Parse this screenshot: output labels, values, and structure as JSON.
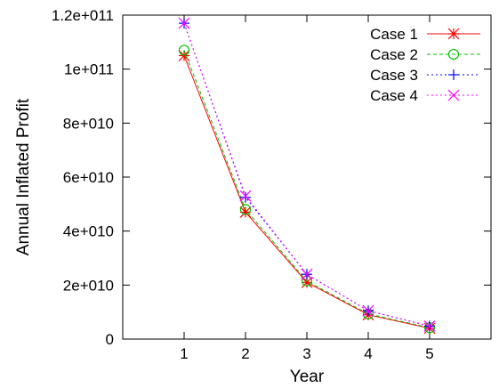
{
  "chart_data": {
    "type": "line",
    "title": "",
    "xlabel": "Year",
    "ylabel": "Annual Inflated Profit",
    "x": [
      1,
      2,
      3,
      4,
      5
    ],
    "xlim": [
      0,
      6
    ],
    "ylim": [
      0,
      120000000000
    ],
    "x_ticks": [
      "1",
      "2",
      "3",
      "4",
      "5"
    ],
    "y_ticks": [
      {
        "value": 0,
        "label": "0"
      },
      {
        "value": 20000000000,
        "label": "2e+010"
      },
      {
        "value": 40000000000,
        "label": "4e+010"
      },
      {
        "value": 60000000000,
        "label": "6e+010"
      },
      {
        "value": 80000000000,
        "label": "8e+010"
      },
      {
        "value": 100000000000,
        "label": "1e+011"
      },
      {
        "value": 120000000000,
        "label": "1.2e+011"
      }
    ],
    "grid": false,
    "legend_position": "top-right",
    "series": [
      {
        "name": "Case 1",
        "color": "#ff0000",
        "marker": "asterisk",
        "dash": "solid",
        "values": [
          105000000000,
          47000000000,
          21000000000,
          9000000000,
          4000000000
        ]
      },
      {
        "name": "Case 2",
        "color": "#00c000",
        "marker": "circle",
        "dash": "dashed",
        "values": [
          107000000000,
          48000000000,
          21500000000,
          9300000000,
          4200000000
        ]
      },
      {
        "name": "Case 3",
        "color": "#0000ff",
        "marker": "plus",
        "dash": "dotted",
        "values": [
          117000000000,
          52500000000,
          24000000000,
          10500000000,
          4800000000
        ]
      },
      {
        "name": "Case 4",
        "color": "#ff00ff",
        "marker": "cross",
        "dash": "dotted",
        "values": [
          117000000000,
          53000000000,
          24000000000,
          10500000000,
          4800000000
        ]
      }
    ]
  }
}
